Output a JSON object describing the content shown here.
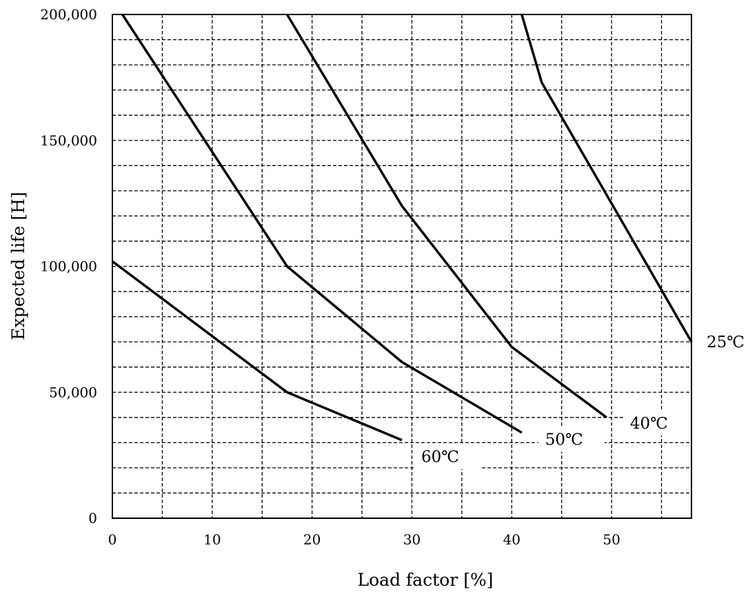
{
  "chart_data": {
    "type": "line",
    "title": "",
    "xlabel": "Load factor  [%]",
    "ylabel": "Expected life  [H]",
    "xlim": [
      0,
      58
    ],
    "ylim": [
      0,
      200000
    ],
    "x_ticks": [
      0,
      10,
      20,
      30,
      40,
      50
    ],
    "x_tick_labels": [
      "0",
      "10",
      "20",
      "30",
      "40",
      "50"
    ],
    "y_ticks": [
      0,
      50000,
      100000,
      150000,
      200000
    ],
    "y_tick_labels": [
      "0",
      "50,000",
      "100,000",
      "150,000",
      "200,000"
    ],
    "x_grid_step": 5,
    "y_grid_step": 10000,
    "grid": true,
    "grid_style": "dashed",
    "legend": "none",
    "series": [
      {
        "name": "25℃",
        "x": [
          41,
          43,
          58
        ],
        "y": [
          200000,
          173000,
          70000
        ]
      },
      {
        "name": "40℃",
        "x": [
          17.5,
          29,
          40,
          49.5
        ],
        "y": [
          200000,
          124000,
          68000,
          40000
        ]
      },
      {
        "name": "50℃",
        "x": [
          1,
          17.5,
          29,
          41
        ],
        "y": [
          200000,
          100000,
          62000,
          34000
        ]
      },
      {
        "name": "60℃",
        "x": [
          0,
          17.5,
          29
        ],
        "y": [
          102000,
          50000,
          31000
        ]
      }
    ]
  }
}
